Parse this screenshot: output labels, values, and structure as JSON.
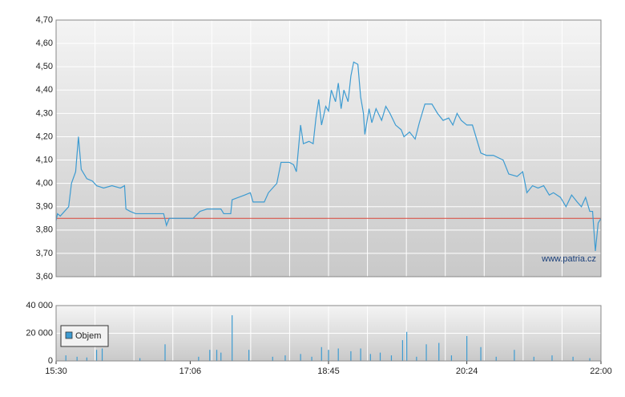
{
  "chart_data": [
    {
      "type": "line",
      "watermark": "www.patria.cz",
      "xlim": [
        "15:30",
        "22:00"
      ],
      "ylim": [
        3.6,
        4.7
      ],
      "yticks": [
        {
          "value": 3.6,
          "label": "3,60"
        },
        {
          "value": 3.7,
          "label": "3,70"
        },
        {
          "value": 3.8,
          "label": "3,80"
        },
        {
          "value": 3.9,
          "label": "3,90"
        },
        {
          "value": 4.0,
          "label": "4,00"
        },
        {
          "value": 4.1,
          "label": "4,10"
        },
        {
          "value": 4.2,
          "label": "4,20"
        },
        {
          "value": 4.3,
          "label": "4,30"
        },
        {
          "value": 4.4,
          "label": "4,40"
        },
        {
          "value": 4.5,
          "label": "4,50"
        },
        {
          "value": 4.6,
          "label": "4,60"
        },
        {
          "value": 4.7,
          "label": "4,70"
        }
      ],
      "grid": true,
      "reference_line": {
        "value": 3.85,
        "color": "#d9463a"
      },
      "x": [
        "15:30",
        "15:31",
        "15:33",
        "15:36",
        "15:39",
        "15:41",
        "15:44",
        "15:46",
        "15:48",
        "15:52",
        "15:56",
        "15:59",
        "16:04",
        "16:10",
        "16:16",
        "16:19",
        "16:20",
        "16:23",
        "16:27",
        "16:36",
        "16:47",
        "16:49",
        "16:51",
        "16:56",
        "17:08",
        "17:13",
        "17:18",
        "17:28",
        "17:30",
        "17:35",
        "17:36",
        "17:45",
        "17:49",
        "17:51",
        "17:59",
        "18:02",
        "18:08",
        "18:11",
        "18:17",
        "18:20",
        "18:22",
        "18:25",
        "18:27",
        "18:31",
        "18:34",
        "18:36",
        "18:38",
        "18:40",
        "18:43",
        "18:45",
        "18:47",
        "18:50",
        "18:52",
        "18:54",
        "18:56",
        "18:59",
        "19:01",
        "19:03",
        "19:06",
        "19:08",
        "19:10",
        "19:11",
        "19:14",
        "19:16",
        "19:19",
        "19:23",
        "19:26",
        "19:29",
        "19:33",
        "19:37",
        "19:39",
        "19:43",
        "19:47",
        "19:50",
        "19:54",
        "19:59",
        "20:03",
        "20:07",
        "20:11",
        "20:14",
        "20:17",
        "20:20",
        "20:24",
        "20:28",
        "20:32",
        "20:34",
        "20:38",
        "20:43",
        "20:50",
        "20:54",
        "21:00",
        "21:04",
        "21:07",
        "21:11",
        "21:15",
        "21:19",
        "21:23",
        "21:26",
        "21:31",
        "21:35",
        "21:39",
        "21:43",
        "21:46",
        "21:49",
        "21:52",
        "21:54",
        "21:56",
        "21:58",
        "22:00"
      ],
      "series": [
        {
          "color": "#3d9bd1",
          "values": [
            3.84,
            3.87,
            3.86,
            3.88,
            3.9,
            4.0,
            4.05,
            4.2,
            4.06,
            4.02,
            4.01,
            3.99,
            3.98,
            3.99,
            3.98,
            3.99,
            3.89,
            3.88,
            3.87,
            3.87,
            3.87,
            3.82,
            3.85,
            3.85,
            3.85,
            3.88,
            3.89,
            3.89,
            3.87,
            3.87,
            3.93,
            3.95,
            3.96,
            3.92,
            3.92,
            3.96,
            4.0,
            4.09,
            4.09,
            4.08,
            4.05,
            4.25,
            4.17,
            4.18,
            4.17,
            4.28,
            4.36,
            4.25,
            4.33,
            4.31,
            4.4,
            4.35,
            4.43,
            4.32,
            4.4,
            4.35,
            4.46,
            4.52,
            4.51,
            4.37,
            4.3,
            4.21,
            4.32,
            4.26,
            4.32,
            4.27,
            4.33,
            4.3,
            4.25,
            4.23,
            4.2,
            4.22,
            4.19,
            4.26,
            4.34,
            4.34,
            4.3,
            4.27,
            4.28,
            4.25,
            4.3,
            4.27,
            4.25,
            4.25,
            4.17,
            4.13,
            4.12,
            4.12,
            4.1,
            4.04,
            4.03,
            4.05,
            3.96,
            3.99,
            3.98,
            3.99,
            3.95,
            3.96,
            3.94,
            3.9,
            3.95,
            3.92,
            3.9,
            3.94,
            3.88,
            3.88,
            3.71,
            3.83,
            3.85
          ]
        }
      ]
    },
    {
      "type": "bar",
      "xlim": [
        "15:30",
        "22:00"
      ],
      "xticks": [
        "15:30",
        "17:06",
        "18:45",
        "20:24",
        "22:00"
      ],
      "ylim": [
        0,
        40000
      ],
      "yticks": [
        0,
        {
          "value": 20000,
          "label": "20 000"
        },
        {
          "value": 40000,
          "label": "40 000"
        }
      ],
      "grid": true,
      "x": [
        "15:37",
        "15:45",
        "15:52",
        "15:59",
        "16:03",
        "16:30",
        "16:48",
        "17:12",
        "17:20",
        "17:25",
        "17:28",
        "17:36",
        "17:48",
        "18:05",
        "18:14",
        "18:25",
        "18:33",
        "18:40",
        "18:45",
        "18:52",
        "19:01",
        "19:08",
        "19:15",
        "19:22",
        "19:30",
        "19:38",
        "19:41",
        "19:48",
        "19:55",
        "20:04",
        "20:13",
        "20:24",
        "20:34",
        "20:45",
        "20:58",
        "21:12",
        "21:25",
        "21:40",
        "21:52"
      ],
      "series": [
        {
          "name": "Objem",
          "color": "#3d9bd1",
          "values": [
            4000,
            3000,
            2500,
            8000,
            9000,
            2000,
            12000,
            3000,
            8000,
            8000,
            6000,
            33000,
            8000,
            3000,
            4000,
            5000,
            3000,
            10000,
            8000,
            9000,
            7000,
            9000,
            5000,
            6000,
            4000,
            15000,
            21000,
            3000,
            12000,
            13000,
            4000,
            18000,
            10000,
            3000,
            8000,
            3000,
            4000,
            3000,
            2000
          ]
        }
      ]
    }
  ]
}
